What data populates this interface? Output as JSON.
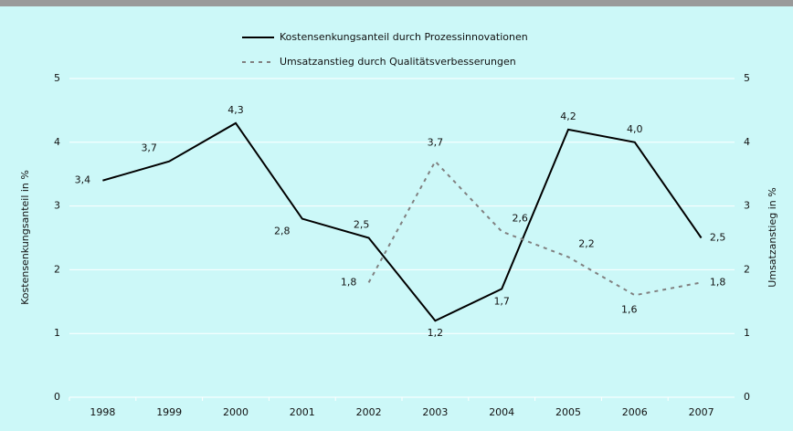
{
  "chart_data": {
    "type": "line",
    "categories": [
      "1998",
      "1999",
      "2000",
      "2001",
      "2002",
      "2003",
      "2004",
      "2005",
      "2006",
      "2007"
    ],
    "series": [
      {
        "name": "Kostensenkungsanteil durch Prozessinnovationen",
        "color": "#000000",
        "style": "solid",
        "values": [
          3.4,
          3.7,
          4.3,
          2.8,
          2.5,
          1.2,
          1.7,
          4.2,
          4.0,
          2.5
        ],
        "value_labels": [
          "3,4",
          "3,7",
          "4,3",
          "2,8",
          "2,5",
          "1,2",
          "1,7",
          "4,2",
          "4,0",
          "2,5"
        ]
      },
      {
        "name": "Umsatzanstieg durch Qualitätsverbesserungen",
        "color": "#808080",
        "style": "dashed",
        "axis": "y2",
        "values": [
          null,
          null,
          null,
          null,
          1.8,
          3.7,
          2.6,
          2.2,
          1.6,
          1.8
        ],
        "value_labels": [
          null,
          null,
          null,
          null,
          "1,8",
          "3,7",
          "2,6",
          "2,2",
          "1,6",
          "1,8"
        ]
      }
    ],
    "ylabel": "Kostensenkungsanteil in %",
    "y2label": "Umsatzanstieg in %",
    "ylim": [
      0,
      5
    ],
    "yticks": [
      0,
      1,
      2,
      3,
      4,
      5
    ],
    "y2lim": [
      0,
      5
    ],
    "y2ticks": [
      0,
      1,
      2,
      3,
      4,
      5
    ],
    "grid": true,
    "legend": "top"
  }
}
